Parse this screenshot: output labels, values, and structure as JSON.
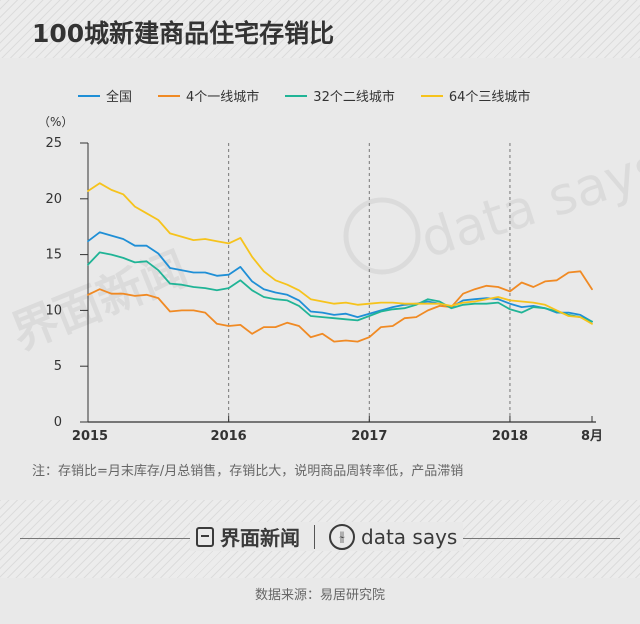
{
  "title": "100城新建商品住宅存销比",
  "note": "注：存销比=月末库存/月总销售，存销比大，说明商品周转率低，产品滞销",
  "source": "数据来源：易居研究院",
  "brand": {
    "jiemian": "界面新闻",
    "datasays": "data says",
    "watermark_jiemian": "界面新闻",
    "watermark_datasays": "data says"
  },
  "chart_data": {
    "type": "line",
    "ylabel": "（%）",
    "ylim": [
      0,
      25
    ],
    "yticks": [
      0,
      5,
      10,
      15,
      20,
      25
    ],
    "x_tick_labels": [
      {
        "label": "2015",
        "index": 0
      },
      {
        "label": "2016",
        "index": 12
      },
      {
        "label": "2017",
        "index": 24
      },
      {
        "label": "2018",
        "index": 36
      },
      {
        "label": "8月",
        "index": 43
      }
    ],
    "year_dividers": [
      12,
      24,
      36
    ],
    "x_count": 44,
    "legend_position": "top",
    "series": [
      {
        "name": "全国",
        "color": "#1f8fd6",
        "values": [
          16.2,
          17.0,
          16.7,
          16.4,
          15.8,
          15.8,
          15.1,
          13.8,
          13.6,
          13.4,
          13.4,
          13.1,
          13.2,
          13.9,
          12.6,
          11.9,
          11.6,
          11.4,
          10.9,
          9.9,
          9.8,
          9.6,
          9.7,
          9.4,
          9.7,
          10.0,
          10.3,
          10.5,
          10.6,
          10.8,
          10.6,
          10.3,
          10.9,
          11.0,
          11.1,
          11.0,
          10.6,
          10.3,
          10.4,
          10.2,
          9.8,
          9.8,
          9.6,
          9.0
        ]
      },
      {
        "name": "4个一线城市",
        "color": "#f08a24",
        "values": [
          11.4,
          11.9,
          11.5,
          11.5,
          11.3,
          11.4,
          11.1,
          9.9,
          10.0,
          10.0,
          9.8,
          8.8,
          8.6,
          8.7,
          7.9,
          8.5,
          8.5,
          8.9,
          8.6,
          7.6,
          7.9,
          7.2,
          7.3,
          7.2,
          7.6,
          8.5,
          8.6,
          9.3,
          9.4,
          10.0,
          10.4,
          10.3,
          11.5,
          11.9,
          12.2,
          12.1,
          11.7,
          12.5,
          12.1,
          12.6,
          12.7,
          13.4,
          13.5,
          11.9
        ]
      },
      {
        "name": "32个二线城市",
        "color": "#20b496",
        "values": [
          14.1,
          15.2,
          15.0,
          14.7,
          14.3,
          14.4,
          13.6,
          12.4,
          12.3,
          12.1,
          12.0,
          11.8,
          12.0,
          12.7,
          11.8,
          11.2,
          11.0,
          10.9,
          10.4,
          9.5,
          9.4,
          9.3,
          9.2,
          9.1,
          9.5,
          9.9,
          10.1,
          10.2,
          10.5,
          11.0,
          10.8,
          10.2,
          10.5,
          10.6,
          10.6,
          10.7,
          10.1,
          9.8,
          10.3,
          10.2,
          9.9,
          9.6,
          9.4,
          9.0
        ]
      },
      {
        "name": "64个三线城市",
        "color": "#f6c31c",
        "values": [
          20.7,
          21.4,
          20.8,
          20.4,
          19.3,
          18.7,
          18.1,
          16.9,
          16.6,
          16.3,
          16.4,
          16.2,
          16.0,
          16.5,
          14.8,
          13.5,
          12.7,
          12.3,
          11.8,
          11.0,
          10.8,
          10.6,
          10.7,
          10.5,
          10.6,
          10.7,
          10.7,
          10.6,
          10.6,
          10.6,
          10.6,
          10.4,
          10.7,
          10.8,
          11.0,
          11.2,
          10.9,
          10.8,
          10.7,
          10.5,
          10.0,
          9.5,
          9.4,
          8.8
        ]
      }
    ]
  }
}
